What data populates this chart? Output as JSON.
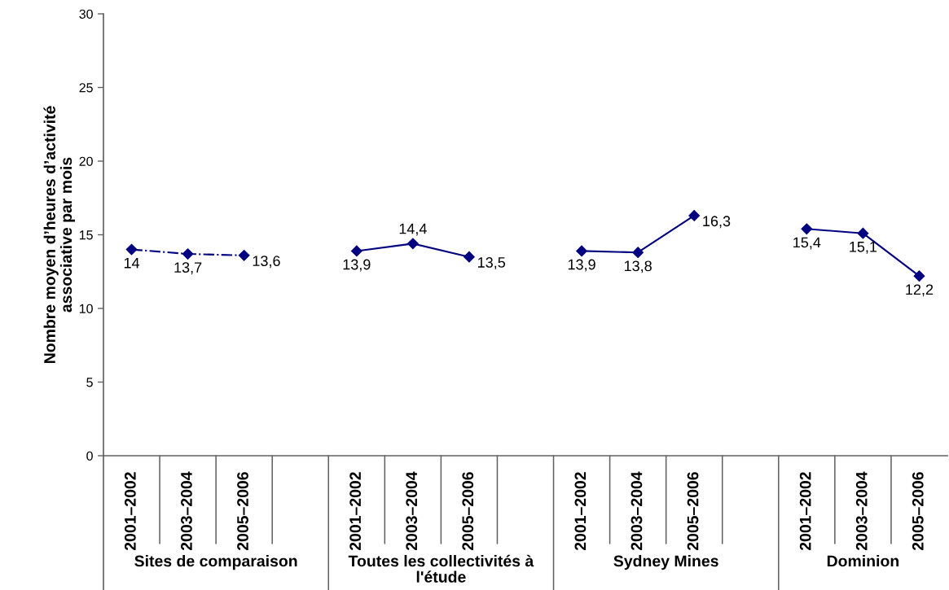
{
  "chart_data": {
    "type": "line",
    "ylabel": "Nombre moyen d’heures d’activité associative par mois",
    "categories": [
      "2001–2002",
      "2003–2004",
      "2005–2006",
      null,
      "2001–2002",
      "2003–2004",
      "2005–2006",
      null,
      "2001–2002",
      "2003–2004",
      "2005–2006",
      null,
      "2001–2002",
      "2003–2004",
      "2005–2006"
    ],
    "annotations": [
      "Sites de comparaison",
      "Toutes les collectivités à l'étude",
      "Sydney Mines",
      "Dominion"
    ],
    "ylim": [
      0,
      30
    ],
    "yticks": [
      0,
      5,
      10,
      15,
      20,
      25,
      30
    ],
    "marker": "diamond",
    "series": [
      {
        "color": "#000080",
        "line_style": "dashdot",
        "values": [
          14,
          13.7,
          13.6,
          null,
          null,
          null,
          null,
          null,
          null,
          null,
          null,
          null,
          null,
          null,
          null
        ],
        "value_labels": [
          "14",
          "13,7",
          "13,6",
          null,
          null,
          null,
          null,
          null,
          null,
          null,
          null,
          null,
          null,
          null,
          null
        ]
      },
      {
        "color": "#000080",
        "line_style": "solid",
        "values": [
          null,
          null,
          null,
          null,
          13.9,
          14.4,
          13.5,
          null,
          null,
          null,
          null,
          null,
          null,
          null,
          null
        ],
        "value_labels": [
          null,
          null,
          null,
          null,
          "13,9",
          "14,4",
          "13,5",
          null,
          null,
          null,
          null,
          null,
          null,
          null,
          null
        ]
      },
      {
        "color": "#000080",
        "line_style": "solid",
        "values": [
          null,
          null,
          null,
          null,
          null,
          null,
          null,
          null,
          13.9,
          13.8,
          16.3,
          null,
          null,
          null,
          null
        ],
        "value_labels": [
          null,
          null,
          null,
          null,
          null,
          null,
          null,
          null,
          "13,9",
          "13,8",
          "16,3",
          null,
          null,
          null,
          null
        ]
      },
      {
        "color": "#000080",
        "line_style": "solid",
        "values": [
          null,
          null,
          null,
          null,
          null,
          null,
          null,
          null,
          null,
          null,
          null,
          null,
          15.4,
          15.1,
          12.2
        ],
        "value_labels": [
          null,
          null,
          null,
          null,
          null,
          null,
          null,
          null,
          null,
          null,
          null,
          null,
          "15,4",
          "15,1",
          "12,2"
        ]
      }
    ]
  }
}
